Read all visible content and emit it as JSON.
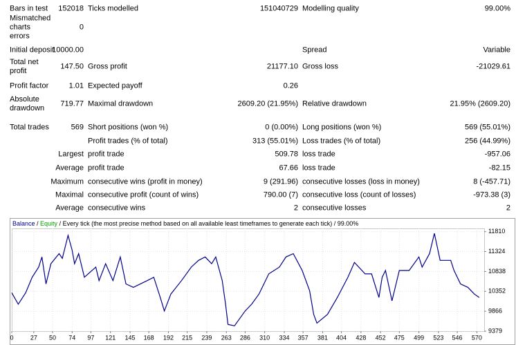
{
  "table": {
    "rows": [
      [
        "Bars in test",
        "152018",
        "Ticks modelled",
        "151040729",
        "Modelling quality",
        "99.00%"
      ],
      [
        "Mismatched charts errors",
        "0",
        null,
        null,
        null,
        null
      ],
      [
        "Initial deposit",
        "10000.00",
        null,
        null,
        "Spread",
        "Variable"
      ],
      [
        "Total net profit",
        "147.50",
        "Gross profit",
        "21177.10",
        "Gross loss",
        "-21029.61"
      ],
      [
        "Profit factor",
        "1.01",
        "Expected payoff",
        "0.26",
        null,
        null
      ],
      [
        "Absolute drawdown",
        "719.77",
        "Maximal drawdown",
        "2609.20 (21.95%)",
        "Relative drawdown",
        "21.95% (2609.20)"
      ],
      [
        "Total trades",
        "569",
        "Short positions (won %)",
        "0 (0.00%)",
        "Long positions (won %)",
        "569 (55.01%)"
      ],
      [
        null,
        null,
        "Profit trades (% of total)",
        "313 (55.01%)",
        "Loss trades (% of total)",
        "256 (44.99%)"
      ],
      [
        null,
        "Largest",
        "profit trade",
        "509.78",
        "loss trade",
        "-957.06"
      ],
      [
        null,
        "Average",
        "profit trade",
        "67.66",
        "loss trade",
        "-82.15"
      ],
      [
        null,
        "Maximum",
        "consecutive wins (profit in money)",
        "9 (291.96)",
        "consecutive losses (loss in money)",
        "8 (-457.71)"
      ],
      [
        null,
        "Maximal",
        "consecutive profit (count of wins)",
        "790.00 (7)",
        "consecutive loss (count of losses)",
        "-973.38 (3)"
      ],
      [
        null,
        "Average",
        "consecutive wins",
        "2",
        "consecutive losses",
        "2"
      ]
    ]
  },
  "chart_data": {
    "type": "line",
    "separator": " / ",
    "equity_label": "Equity",
    "equity_color": "#00a000",
    "title": "Every tick (the most precise method based on all available least timeframes to generate each tick) / 99.00%",
    "x": [
      0,
      8,
      17,
      25,
      33,
      37,
      42,
      48,
      58,
      62,
      69,
      74,
      77,
      82,
      89,
      103,
      107,
      115,
      124,
      133,
      140,
      149,
      166,
      174,
      182,
      187,
      195,
      208,
      220,
      229,
      237,
      245,
      250,
      258,
      262,
      265,
      273,
      286,
      294,
      303,
      315,
      328,
      336,
      345,
      356,
      365,
      370,
      374,
      387,
      399,
      412,
      420,
      433,
      441,
      450,
      454,
      458,
      466,
      475,
      487,
      499,
      503,
      512,
      518,
      525,
      538,
      542,
      550,
      559,
      567,
      573
    ],
    "series": [
      {
        "name": "Balance",
        "color": "#00008b",
        "values": [
          10318,
          10038,
          10318,
          10697,
          10945,
          11192,
          10533,
          11027,
          11274,
          11159,
          11719,
          11357,
          11027,
          11274,
          10697,
          10945,
          10615,
          11027,
          10615,
          11192,
          10533,
          10450,
          10615,
          10697,
          10203,
          9873,
          10285,
          10615,
          10945,
          11109,
          11192,
          11027,
          11192,
          10615,
          10038,
          9544,
          9511,
          9873,
          10038,
          10285,
          10780,
          10945,
          11192,
          11274,
          10862,
          10368,
          9791,
          9577,
          9791,
          10203,
          10697,
          11060,
          10780,
          10780,
          10203,
          10697,
          10862,
          10121,
          10862,
          10862,
          11192,
          10945,
          11274,
          11769,
          11109,
          11109,
          10862,
          10533,
          10450,
          10285,
          10203
        ]
      }
    ],
    "xlim": [
      0,
      579
    ],
    "xticks": [
      0,
      27,
      50,
      74,
      97,
      121,
      145,
      168,
      192,
      215,
      239,
      263,
      286,
      310,
      334,
      357,
      381,
      404,
      428,
      452,
      475,
      499,
      523,
      546,
      570
    ],
    "ylim": [
      9379,
      11890
    ],
    "yticks": [
      9379,
      9866,
      10352,
      10838,
      11324,
      11810
    ],
    "grid": true
  }
}
